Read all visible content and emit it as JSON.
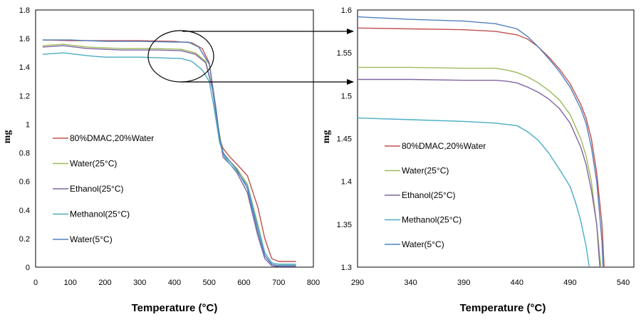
{
  "colors": {
    "dmac": "#c0504d",
    "water25": "#9bbb59",
    "ethanol": "#8064a2",
    "methanol": "#4bacc6",
    "water5": "#4f81bd"
  },
  "chart_data": [
    {
      "type": "line",
      "xlabel": "Temperature (°C)",
      "ylabel": "mg",
      "xlim": [
        0,
        800
      ],
      "ylim": [
        0,
        1.8
      ],
      "xticks": [
        "0",
        "100",
        "200",
        "300",
        "400",
        "500",
        "600",
        "700",
        "800"
      ],
      "yticks": [
        "0",
        "0.2",
        "0.4",
        "0.6",
        "0.8",
        "1",
        "1.2",
        "1.4",
        "1.6",
        "1.8"
      ],
      "grid": false,
      "legend_position": "left",
      "annotation": "ellipse around 350–500 °C linked by arrows to the zoomed chart",
      "series": [
        {
          "name": "80%DMAC,20%Water",
          "color": "#c0504d",
          "x": [
            20,
            100,
            200,
            300,
            400,
            450,
            480,
            500,
            520,
            530,
            540,
            560,
            580,
            610,
            640,
            660,
            680,
            700,
            720,
            750
          ],
          "y": [
            1.59,
            1.585,
            1.585,
            1.585,
            1.58,
            1.57,
            1.53,
            1.43,
            1.1,
            0.9,
            0.83,
            0.77,
            0.72,
            0.64,
            0.42,
            0.2,
            0.06,
            0.04,
            0.04,
            0.04
          ]
        },
        {
          "name": "Water(25°C)",
          "color": "#9bbb59",
          "x": [
            20,
            80,
            150,
            250,
            350,
            420,
            460,
            490,
            510,
            525,
            540,
            560,
            580,
            610,
            640,
            660,
            680,
            700,
            750
          ],
          "y": [
            1.55,
            1.56,
            1.54,
            1.53,
            1.53,
            1.525,
            1.5,
            1.44,
            1.25,
            1.0,
            0.79,
            0.74,
            0.69,
            0.58,
            0.3,
            0.1,
            0.03,
            0.02,
            0.02
          ]
        },
        {
          "name": "Ethanol(25°C)",
          "color": "#8064a2",
          "x": [
            20,
            80,
            150,
            250,
            350,
            420,
            460,
            490,
            510,
            525,
            540,
            560,
            580,
            610,
            640,
            660,
            680,
            700,
            750
          ],
          "y": [
            1.54,
            1.55,
            1.53,
            1.52,
            1.52,
            1.515,
            1.49,
            1.43,
            1.24,
            0.98,
            0.77,
            0.72,
            0.66,
            0.52,
            0.22,
            0.06,
            0.01,
            0.005,
            0.005
          ]
        },
        {
          "name": "Methanol(25°C)",
          "color": "#4bacc6",
          "x": [
            20,
            80,
            150,
            200,
            300,
            420,
            450,
            480,
            500,
            515,
            530,
            545,
            560,
            580,
            610,
            640,
            660,
            680,
            700,
            750
          ],
          "y": [
            1.49,
            1.5,
            1.48,
            1.47,
            1.47,
            1.46,
            1.44,
            1.38,
            1.3,
            1.1,
            0.87,
            0.77,
            0.72,
            0.67,
            0.57,
            0.28,
            0.1,
            0.03,
            0.02,
            0.02
          ]
        },
        {
          "name": "Water(5°C)",
          "color": "#4f81bd",
          "x": [
            20,
            100,
            200,
            300,
            400,
            440,
            470,
            500,
            520,
            530,
            540,
            560,
            580,
            610,
            640,
            660,
            680,
            700,
            750
          ],
          "y": [
            1.59,
            1.59,
            1.58,
            1.58,
            1.575,
            1.575,
            1.54,
            1.42,
            1.1,
            0.9,
            0.8,
            0.74,
            0.68,
            0.55,
            0.25,
            0.08,
            0.02,
            0.01,
            0.01
          ]
        }
      ]
    },
    {
      "type": "line",
      "xlabel": "Temperature (°C)",
      "ylabel": "mg",
      "xlim": [
        290,
        550
      ],
      "ylim": [
        1.3,
        1.6
      ],
      "xticks": [
        "290",
        "340",
        "390",
        "440",
        "490",
        "540"
      ],
      "yticks": [
        "1.3",
        "1.35",
        "1.4",
        "1.45",
        "1.5",
        "1.55",
        "1.6"
      ],
      "grid": false,
      "legend_position": "left",
      "series": [
        {
          "name": "80%DMAC,20%Water",
          "color": "#c0504d",
          "x": [
            290,
            340,
            390,
            420,
            440,
            450,
            460,
            470,
            480,
            490,
            500,
            505,
            510,
            515,
            520,
            522
          ],
          "y": [
            1.579,
            1.578,
            1.577,
            1.575,
            1.571,
            1.566,
            1.557,
            1.545,
            1.531,
            1.514,
            1.49,
            1.474,
            1.45,
            1.41,
            1.35,
            1.3
          ]
        },
        {
          "name": "Water(25°C)",
          "color": "#9bbb59",
          "x": [
            290,
            340,
            390,
            420,
            430,
            440,
            450,
            460,
            470,
            480,
            490,
            500,
            505,
            510,
            515,
            519
          ],
          "y": [
            1.533,
            1.533,
            1.532,
            1.532,
            1.53,
            1.527,
            1.522,
            1.515,
            1.506,
            1.495,
            1.478,
            1.45,
            1.43,
            1.4,
            1.35,
            1.3
          ]
        },
        {
          "name": "Ethanol(25°C)",
          "color": "#8064a2",
          "x": [
            290,
            340,
            390,
            420,
            430,
            440,
            450,
            460,
            470,
            480,
            490,
            500,
            505,
            510,
            515,
            518
          ],
          "y": [
            1.519,
            1.519,
            1.518,
            1.518,
            1.517,
            1.515,
            1.51,
            1.504,
            1.496,
            1.485,
            1.468,
            1.44,
            1.42,
            1.39,
            1.35,
            1.3
          ]
        },
        {
          "name": "Methanol(25°C)",
          "color": "#4bacc6",
          "x": [
            290,
            340,
            390,
            420,
            440,
            450,
            460,
            470,
            480,
            490,
            495,
            500,
            505,
            508
          ],
          "y": [
            1.474,
            1.472,
            1.47,
            1.468,
            1.465,
            1.458,
            1.448,
            1.433,
            1.414,
            1.394,
            1.376,
            1.354,
            1.325,
            1.3
          ]
        },
        {
          "name": "Water(5°C)",
          "color": "#4f81bd",
          "x": [
            290,
            340,
            390,
            420,
            440,
            450,
            460,
            470,
            480,
            490,
            500,
            505,
            510,
            515,
            520,
            521
          ],
          "y": [
            1.592,
            1.589,
            1.587,
            1.584,
            1.578,
            1.569,
            1.557,
            1.543,
            1.528,
            1.51,
            1.485,
            1.468,
            1.44,
            1.4,
            1.33,
            1.3
          ]
        }
      ]
    }
  ]
}
